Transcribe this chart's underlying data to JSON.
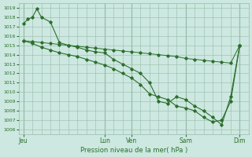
{
  "background_color": "#cce8e0",
  "grid_color": "#99bbaa",
  "line_color": "#2d6e2d",
  "marker_color": "#2d6e2d",
  "xlabel": "Pression niveau de la mer( hPa )",
  "ylim": [
    1005.5,
    1019.5
  ],
  "yticks": [
    1006,
    1007,
    1008,
    1009,
    1010,
    1011,
    1012,
    1013,
    1014,
    1015,
    1016,
    1017,
    1018,
    1019
  ],
  "xtick_labels": [
    "Jeu",
    "Lun",
    "Ven",
    "Sam",
    "Dim"
  ],
  "xtick_positions": [
    0,
    36,
    48,
    72,
    96
  ],
  "xlim": [
    -2,
    100
  ],
  "series": [
    {
      "x": [
        0,
        4,
        8,
        12,
        16,
        20,
        24,
        28,
        32,
        36,
        40,
        44,
        48,
        52,
        56,
        60,
        64,
        68,
        72,
        76,
        80,
        84,
        88,
        92,
        96
      ],
      "y": [
        1015.5,
        1015.4,
        1015.3,
        1015.2,
        1015.1,
        1015.0,
        1014.9,
        1014.8,
        1014.7,
        1014.6,
        1014.5,
        1014.4,
        1014.3,
        1014.2,
        1014.1,
        1014.0,
        1013.9,
        1013.8,
        1013.6,
        1013.5,
        1013.4,
        1013.3,
        1013.2,
        1013.1,
        1015.0
      ]
    },
    {
      "x": [
        0,
        2,
        4,
        6,
        8,
        12,
        16,
        20,
        24,
        28,
        32,
        36,
        40,
        44,
        48,
        52,
        56,
        60,
        64,
        68,
        72,
        76,
        80,
        84,
        88,
        92,
        96
      ],
      "y": [
        1017.3,
        1017.8,
        1018.0,
        1018.9,
        1018.0,
        1017.5,
        1015.3,
        1015.0,
        1014.8,
        1014.5,
        1014.3,
        1014.2,
        1013.5,
        1013.0,
        1012.5,
        1012.0,
        1011.0,
        1009.0,
        1008.8,
        1009.5,
        1009.2,
        1008.5,
        1008.0,
        1007.3,
        1006.5,
        1009.5,
        1015.0
      ]
    },
    {
      "x": [
        0,
        4,
        8,
        12,
        16,
        20,
        24,
        28,
        32,
        36,
        40,
        44,
        48,
        52,
        56,
        60,
        64,
        68,
        72,
        76,
        80,
        84,
        88,
        92,
        96
      ],
      "y": [
        1015.5,
        1015.2,
        1014.8,
        1014.5,
        1014.2,
        1014.0,
        1013.8,
        1013.5,
        1013.2,
        1012.9,
        1012.5,
        1012.0,
        1011.5,
        1010.8,
        1009.8,
        1009.5,
        1009.2,
        1008.5,
        1008.3,
        1008.0,
        1007.3,
        1006.8,
        1007.0,
        1009.0,
        1015.0
      ]
    }
  ],
  "vlines": [
    0,
    36,
    48,
    72,
    96
  ]
}
